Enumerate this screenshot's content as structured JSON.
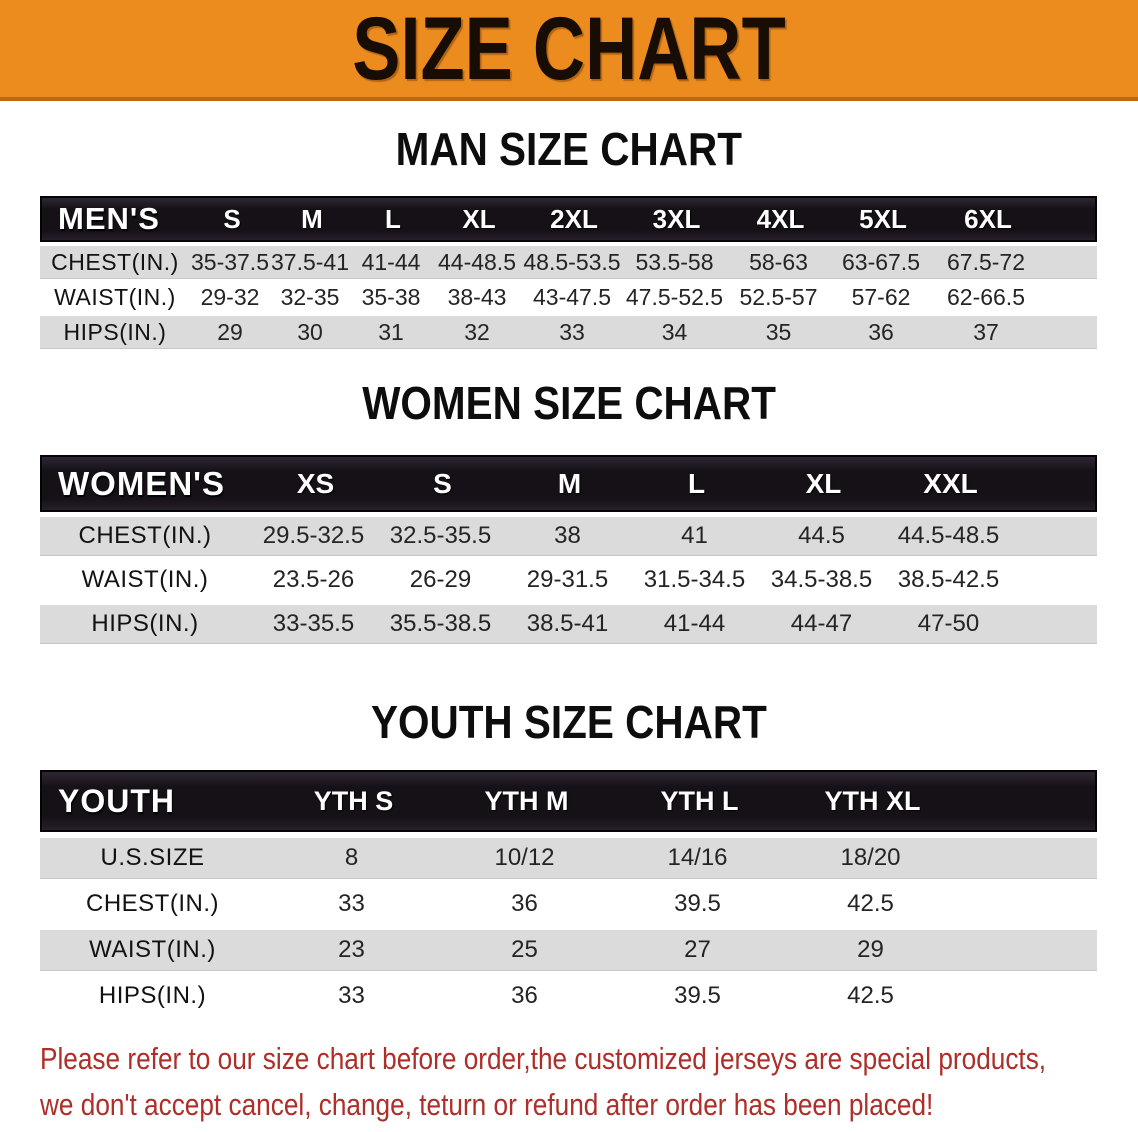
{
  "banner": {
    "title": "SIZE CHART"
  },
  "sections": [
    {
      "title": "MAN SIZE CHART",
      "header_label": "MEN'S",
      "columns": [
        "S",
        "M",
        "L",
        "XL",
        "2XL",
        "3XL",
        "4XL",
        "5XL",
        "6XL"
      ],
      "rows": [
        {
          "label": "CHEST(IN.)",
          "values": [
            "35-37.5",
            "37.5-41",
            "41-44",
            "44-48.5",
            "48.5-53.5",
            "53.5-58",
            "58-63",
            "63-67.5",
            "67.5-72"
          ]
        },
        {
          "label": "WAIST(IN.)",
          "values": [
            "29-32",
            "32-35",
            "35-38",
            "38-43",
            "43-47.5",
            "47.5-52.5",
            "52.5-57",
            "57-62",
            "62-66.5"
          ]
        },
        {
          "label": "HIPS(IN.)",
          "values": [
            "29",
            "30",
            "31",
            "32",
            "33",
            "34",
            "35",
            "36",
            "37"
          ]
        }
      ]
    },
    {
      "title": "WOMEN SIZE CHART",
      "header_label": "WOMEN'S",
      "columns": [
        "XS",
        "S",
        "M",
        "L",
        "XL",
        "XXL"
      ],
      "rows": [
        {
          "label": "CHEST(IN.)",
          "values": [
            "29.5-32.5",
            "32.5-35.5",
            "38",
            "41",
            "44.5",
            "44.5-48.5"
          ]
        },
        {
          "label": "WAIST(IN.)",
          "values": [
            "23.5-26",
            "26-29",
            "29-31.5",
            "31.5-34.5",
            "34.5-38.5",
            "38.5-42.5"
          ]
        },
        {
          "label": "HIPS(IN.)",
          "values": [
            "33-35.5",
            "35.5-38.5",
            "38.5-41",
            "41-44",
            "44-47",
            "47-50"
          ]
        }
      ]
    },
    {
      "title": "YOUTH SIZE CHART",
      "header_label": "YOUTH",
      "columns": [
        "YTH S",
        "YTH M",
        "YTH L",
        "YTH XL"
      ],
      "rows": [
        {
          "label": "U.S.SIZE",
          "values": [
            "8",
            "10/12",
            "14/16",
            "18/20"
          ]
        },
        {
          "label": "CHEST(IN.)",
          "values": [
            "33",
            "36",
            "39.5",
            "42.5"
          ]
        },
        {
          "label": "WAIST(IN.)",
          "values": [
            "23",
            "25",
            "27",
            "29"
          ]
        },
        {
          "label": "HIPS(IN.)",
          "values": [
            "33",
            "36",
            "39.5",
            "42.5"
          ]
        }
      ]
    }
  ],
  "footer": {
    "line1": "Please refer to our size chart before order,the customized jerseys are special products,",
    "line2": "we don't accept cancel, change, teturn or refund after order has been placed!"
  },
  "colors": {
    "banner_bg": "#EC8B1E",
    "banner_edge": "#BF680D",
    "table_header_bg": "#161117",
    "row_stripe": "#DBDBDB",
    "warning_text": "#AE2E29"
  }
}
